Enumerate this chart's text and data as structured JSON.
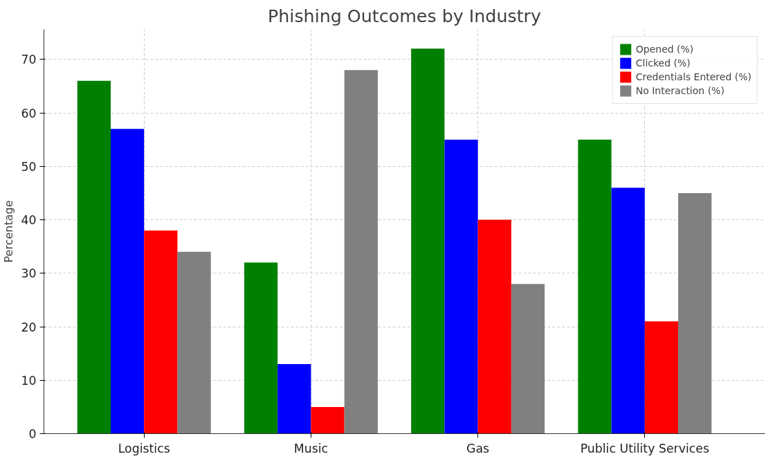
{
  "chart_data": {
    "type": "bar",
    "title": "Phishing Outcomes by Industry",
    "ylabel": "Percentage",
    "categories": [
      "Logistics",
      "Music",
      "Gas",
      "Public Utility Services"
    ],
    "series": [
      {
        "name": "Opened (%)",
        "color": "#008000",
        "values": [
          66,
          32,
          72,
          55
        ]
      },
      {
        "name": "Clicked (%)",
        "color": "#0000ff",
        "values": [
          57,
          13,
          55,
          46
        ]
      },
      {
        "name": "Credentials Entered (%)",
        "color": "#ff0000",
        "values": [
          38,
          5,
          40,
          21
        ]
      },
      {
        "name": "No Interaction (%)",
        "color": "#808080",
        "values": [
          34,
          68,
          28,
          45
        ]
      }
    ],
    "ylim": [
      0,
      75.6
    ],
    "yticks": [
      0,
      10,
      20,
      30,
      40,
      50,
      60,
      70
    ],
    "grid": true,
    "legend": "top right"
  }
}
